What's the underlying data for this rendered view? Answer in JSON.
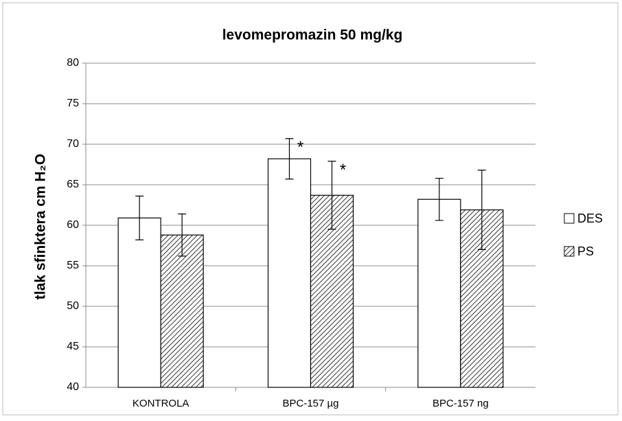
{
  "chart_data": {
    "type": "bar",
    "title": "levomepromazin 50 mg/kg",
    "y_label": "tlak sfinktera cm H₂O",
    "categories": [
      "KONTROLA",
      "BPC-157 µg",
      "BPC-157 ng"
    ],
    "series": [
      {
        "name": "DES",
        "color": "#ffffff",
        "hatch": false,
        "values": [
          60.9,
          68.2,
          63.2
        ],
        "errors": [
          2.7,
          2.5,
          2.6
        ],
        "markers": [
          null,
          "*",
          null
        ]
      },
      {
        "name": "PS",
        "color": "#000000",
        "hatch": true,
        "values": [
          58.8,
          63.7,
          61.9
        ],
        "errors": [
          2.6,
          4.2,
          4.9
        ],
        "markers": [
          null,
          "*",
          null
        ]
      }
    ],
    "ylim": [
      40,
      80
    ],
    "yticks": [
      40,
      45,
      50,
      55,
      60,
      65,
      70,
      75,
      80
    ],
    "grid": true,
    "legend": "right"
  }
}
